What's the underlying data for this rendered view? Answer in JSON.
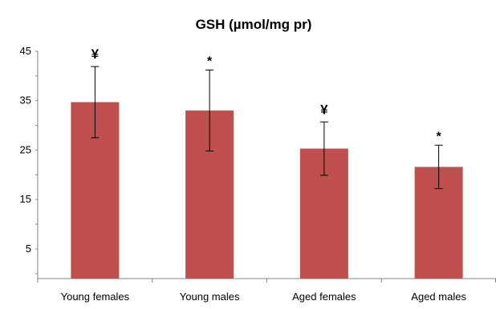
{
  "chart_data": {
    "type": "bar",
    "title": "GSH (µmol/mg pr)",
    "xlabel": "",
    "ylabel": "",
    "categories": [
      "Young females",
      "Young males",
      "Aged females",
      "Aged males"
    ],
    "values": [
      34.7,
      33.0,
      25.3,
      21.6
    ],
    "error": [
      7.2,
      8.2,
      5.4,
      4.4
    ],
    "annotations": [
      "¥",
      "*",
      "¥",
      "*"
    ],
    "ylim": [
      -1,
      45
    ],
    "yticks": [
      5,
      15,
      25,
      35,
      45
    ],
    "ytick_labels": [
      "5",
      "15",
      "25",
      "35",
      "45"
    ],
    "grid": false,
    "bar_color": "#c0504d",
    "axis_color": "#868686"
  }
}
